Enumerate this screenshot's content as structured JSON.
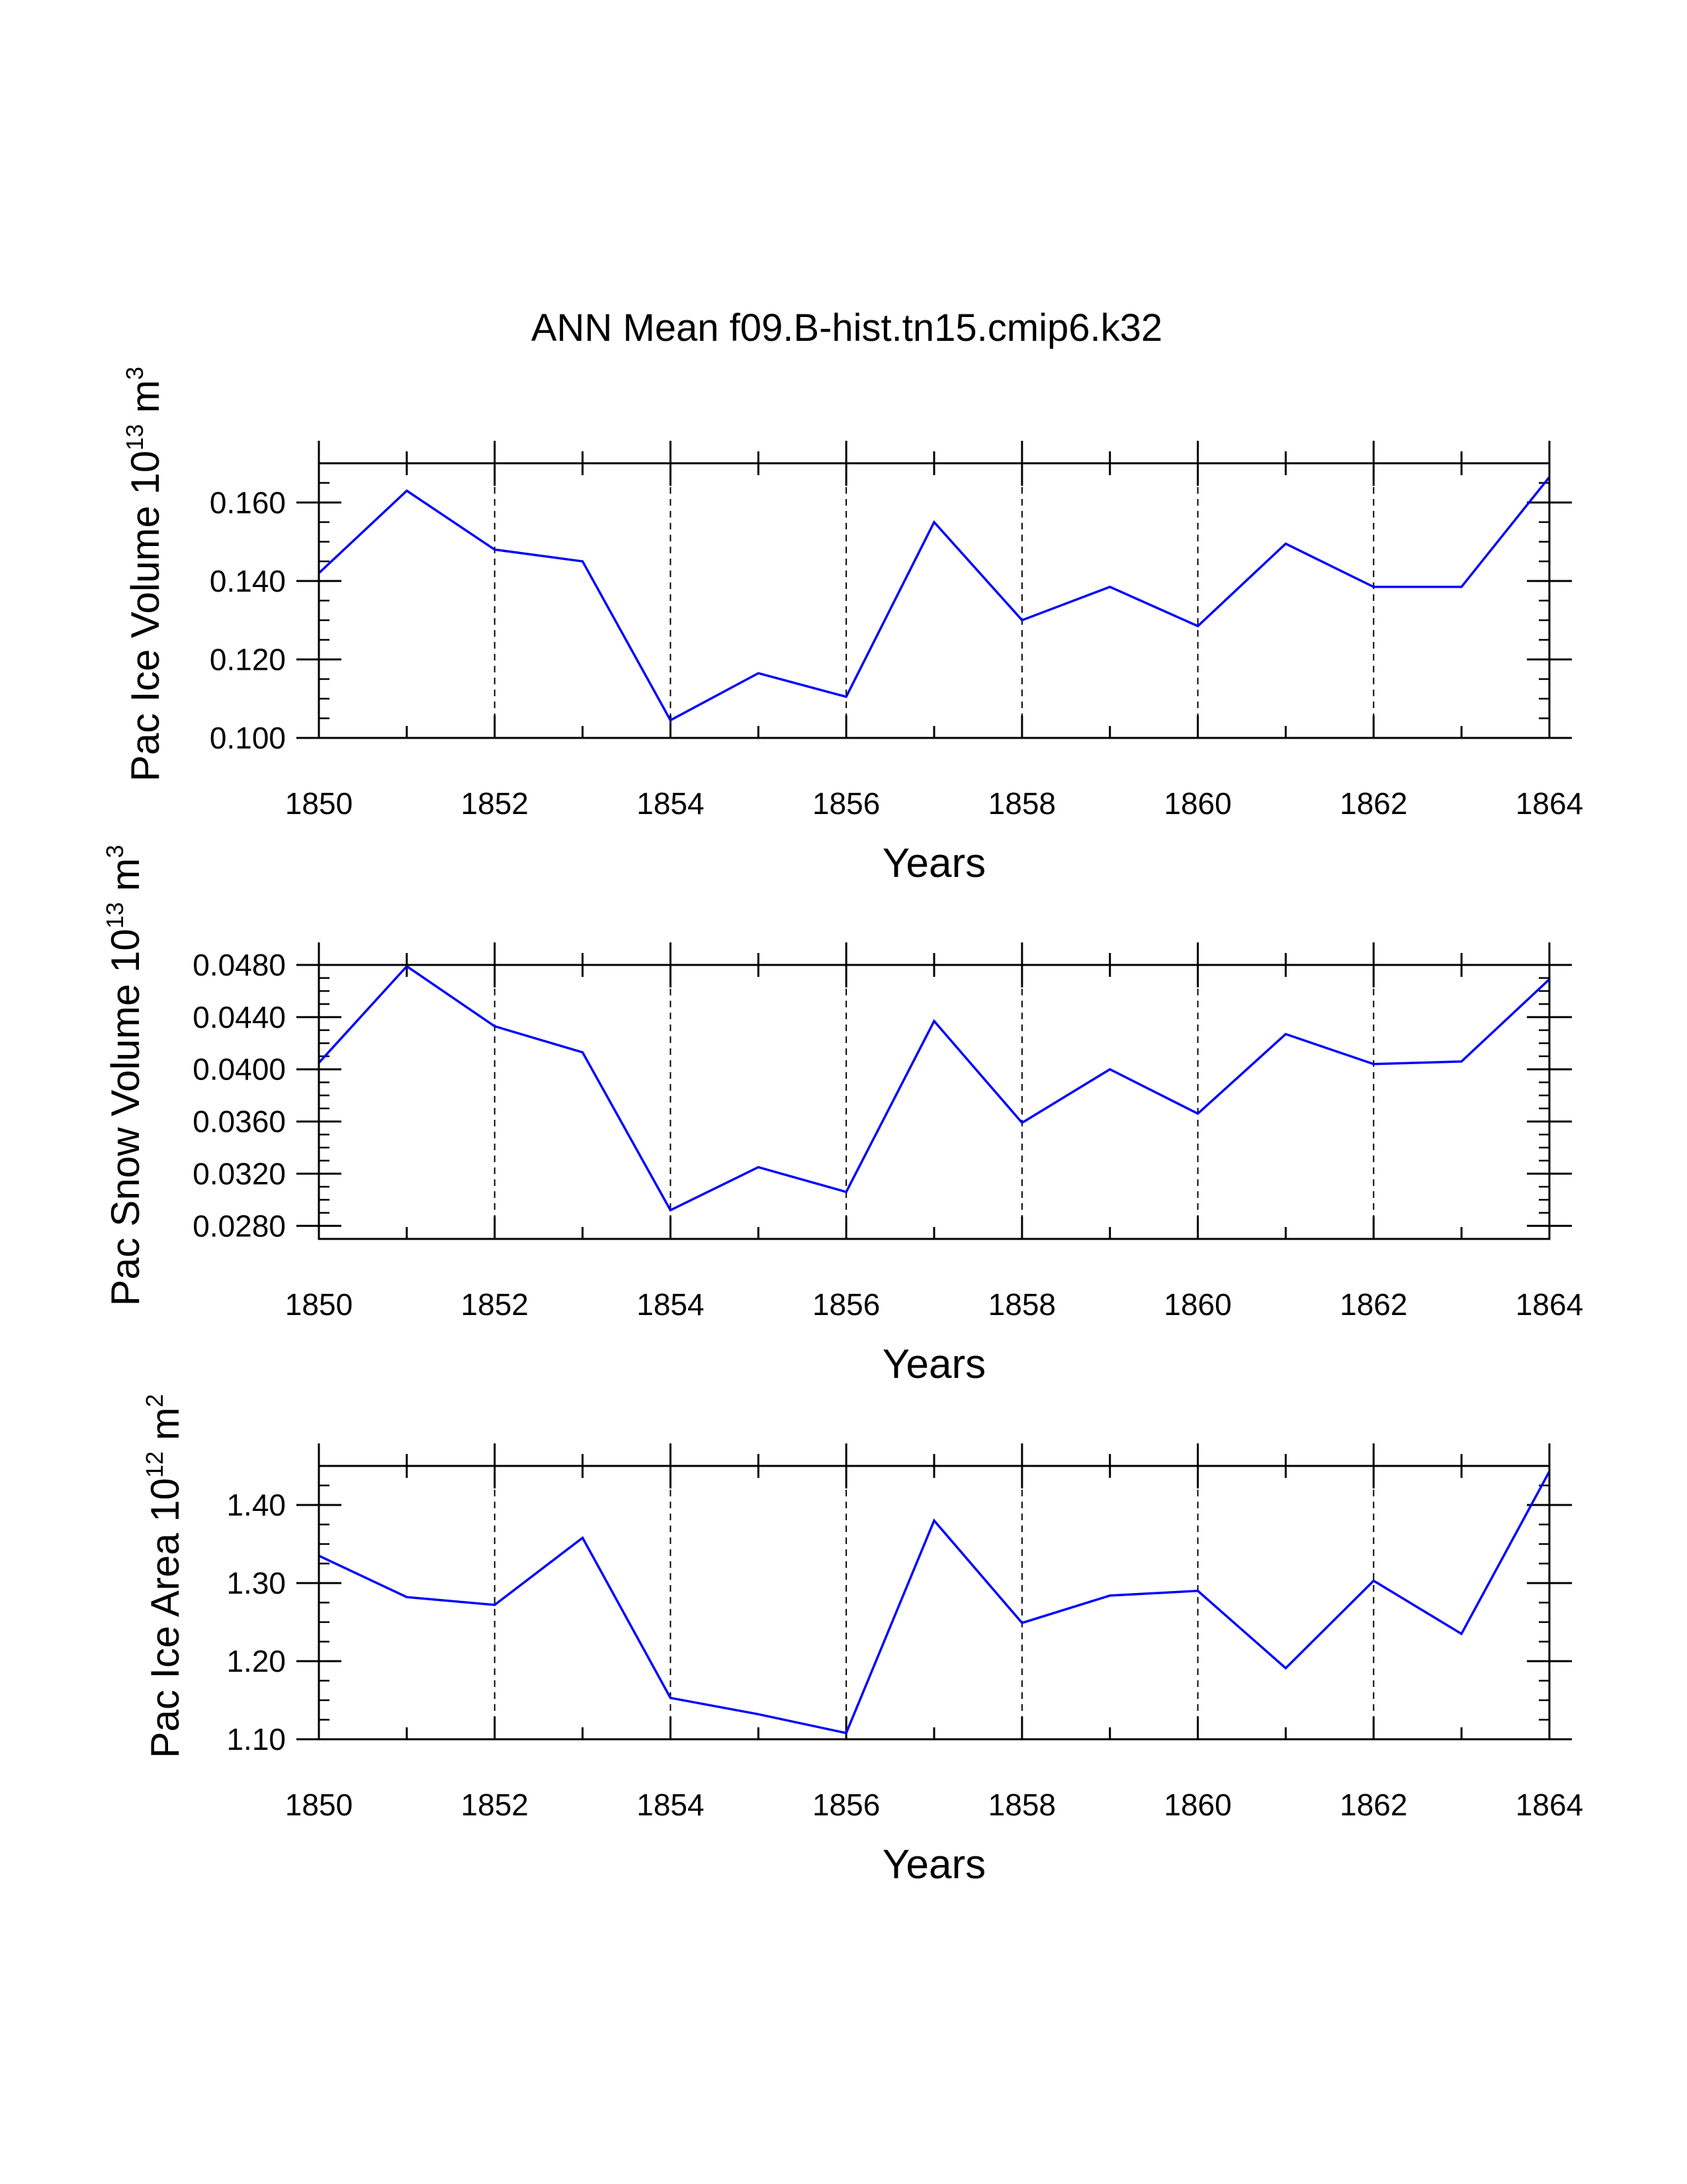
{
  "title": "ANN Mean f09.B-hist.tn15.cmip6.k32",
  "chart_data": [
    {
      "type": "line",
      "ylabel_main": "Pac Ice Volume 10",
      "ylabel_exp": "13",
      "ylabel_unit": " m",
      "ylabel_unit_exp": "3",
      "xlabel": "Years",
      "x": [
        1850,
        1851,
        1852,
        1853,
        1854,
        1855,
        1856,
        1857,
        1858,
        1859,
        1860,
        1861,
        1862,
        1863,
        1864
      ],
      "values": [
        0.142,
        0.163,
        0.148,
        0.145,
        0.1045,
        0.1165,
        0.1105,
        0.155,
        0.13,
        0.1385,
        0.1285,
        0.1495,
        0.1385,
        0.1385,
        0.1665
      ],
      "xlim": [
        1850,
        1864
      ],
      "ylim": [
        0.1,
        0.17
      ],
      "xticks": [
        "1850",
        "1852",
        "1854",
        "1856",
        "1858",
        "1860",
        "1862",
        "1864"
      ],
      "yticks": [
        "0.100",
        "0.120",
        "0.140",
        "0.160"
      ],
      "ytick_values": [
        0.1,
        0.12,
        0.14,
        0.16
      ],
      "y_minor_step": 0.005,
      "color": "#0000ff",
      "grid": "vertical dashed at major x ticks"
    },
    {
      "type": "line",
      "ylabel_main": "Pac Snow Volume 10",
      "ylabel_exp": "13",
      "ylabel_unit": " m",
      "ylabel_unit_exp": "3",
      "xlabel": "Years",
      "x": [
        1850,
        1851,
        1852,
        1853,
        1854,
        1855,
        1856,
        1857,
        1858,
        1859,
        1860,
        1861,
        1862,
        1863,
        1864
      ],
      "values": [
        0.0405,
        0.0479,
        0.0433,
        0.0413,
        0.0292,
        0.0325,
        0.0306,
        0.0437,
        0.0359,
        0.04,
        0.0366,
        0.0427,
        0.0404,
        0.0406,
        0.0469
      ],
      "xlim": [
        1850,
        1864
      ],
      "ylim": [
        0.027,
        0.048
      ],
      "xticks": [
        "1850",
        "1852",
        "1854",
        "1856",
        "1858",
        "1860",
        "1862",
        "1864"
      ],
      "yticks": [
        "0.0280",
        "0.0320",
        "0.0360",
        "0.0400",
        "0.0440",
        "0.0480"
      ],
      "ytick_values": [
        0.028,
        0.032,
        0.036,
        0.04,
        0.044,
        0.048
      ],
      "y_minor_step": 0.001,
      "color": "#0000ff",
      "grid": "vertical dashed at major x ticks"
    },
    {
      "type": "line",
      "ylabel_main": "Pac Ice Area 10",
      "ylabel_exp": "12",
      "ylabel_unit": " m",
      "ylabel_unit_exp": "2",
      "xlabel": "Years",
      "x": [
        1850,
        1851,
        1852,
        1853,
        1854,
        1855,
        1856,
        1857,
        1858,
        1859,
        1860,
        1861,
        1862,
        1863,
        1864
      ],
      "values": [
        1.335,
        1.282,
        1.272,
        1.358,
        1.153,
        1.132,
        1.108,
        1.38,
        1.249,
        1.284,
        1.29,
        1.191,
        1.303,
        1.235,
        1.443
      ],
      "xlim": [
        1850,
        1864
      ],
      "ylim": [
        1.1,
        1.45
      ],
      "xticks": [
        "1850",
        "1852",
        "1854",
        "1856",
        "1858",
        "1860",
        "1862",
        "1864"
      ],
      "yticks": [
        "1.10",
        "1.20",
        "1.30",
        "1.40"
      ],
      "ytick_values": [
        1.1,
        1.2,
        1.3,
        1.4
      ],
      "y_minor_step": 0.025,
      "color": "#0000ff",
      "grid": "vertical dashed at major x ticks"
    }
  ]
}
